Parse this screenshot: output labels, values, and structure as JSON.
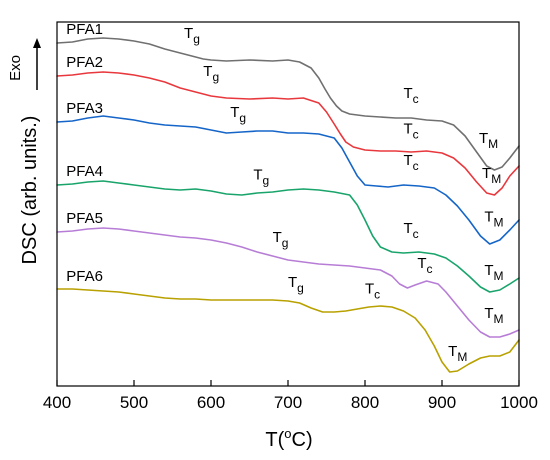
{
  "chart_data": {
    "type": "line",
    "title": "",
    "xlabel": "T(",
    "xlabel_sup": "o",
    "xlabel_tail": "C)",
    "ylabel": "DSC (arb. units.)",
    "exo_label": "Exo",
    "xlim": [
      400,
      1000
    ],
    "x_ticks": [
      400,
      500,
      600,
      700,
      800,
      900,
      1000
    ],
    "y_ticks_visible": false,
    "grid": false,
    "legend": "none",
    "series": [
      {
        "name": "PFA1",
        "color": "#707070",
        "y": [
          [
            400,
            43
          ],
          [
            420,
            42
          ],
          [
            440,
            39
          ],
          [
            460,
            38
          ],
          [
            480,
            39
          ],
          [
            500,
            41
          ],
          [
            520,
            44
          ],
          [
            540,
            49
          ],
          [
            560,
            53
          ],
          [
            575,
            56
          ],
          [
            590,
            59
          ],
          [
            600,
            60
          ],
          [
            620,
            61
          ],
          [
            650,
            60
          ],
          [
            680,
            61
          ],
          [
            700,
            60
          ],
          [
            715,
            62
          ],
          [
            730,
            68
          ],
          [
            740,
            78
          ],
          [
            748,
            89
          ],
          [
            755,
            98
          ],
          [
            763,
            106
          ],
          [
            770,
            111
          ],
          [
            780,
            114
          ],
          [
            800,
            116
          ],
          [
            820,
            117
          ],
          [
            840,
            118
          ],
          [
            860,
            118
          ],
          [
            880,
            120
          ],
          [
            900,
            121
          ],
          [
            915,
            125
          ],
          [
            930,
            136
          ],
          [
            945,
            152
          ],
          [
            958,
            166
          ],
          [
            968,
            170
          ],
          [
            978,
            167
          ],
          [
            988,
            158
          ],
          [
            1000,
            146
          ]
        ],
        "tg": 585,
        "tc": 865,
        "tm": 965
      },
      {
        "name": "PFA2",
        "color": "#e8383d",
        "y": [
          [
            400,
            76
          ],
          [
            420,
            75
          ],
          [
            440,
            73
          ],
          [
            460,
            72
          ],
          [
            480,
            73
          ],
          [
            500,
            75
          ],
          [
            520,
            78
          ],
          [
            540,
            82
          ],
          [
            560,
            88
          ],
          [
            580,
            92
          ],
          [
            600,
            96
          ],
          [
            620,
            98
          ],
          [
            650,
            99
          ],
          [
            680,
            98
          ],
          [
            700,
            99
          ],
          [
            720,
            98
          ],
          [
            740,
            103
          ],
          [
            750,
            112
          ],
          [
            760,
            124
          ],
          [
            768,
            134
          ],
          [
            775,
            142
          ],
          [
            785,
            147
          ],
          [
            800,
            150
          ],
          [
            820,
            151
          ],
          [
            840,
            151
          ],
          [
            860,
            152
          ],
          [
            880,
            151
          ],
          [
            900,
            153
          ],
          [
            915,
            158
          ],
          [
            930,
            168
          ],
          [
            945,
            182
          ],
          [
            958,
            193
          ],
          [
            968,
            195
          ],
          [
            978,
            188
          ],
          [
            988,
            176
          ],
          [
            1000,
            166
          ]
        ],
        "tg": 600,
        "tc": 865,
        "tm": 970
      },
      {
        "name": "PFA3",
        "color": "#1565c8",
        "y": [
          [
            400,
            122
          ],
          [
            420,
            121
          ],
          [
            440,
            118
          ],
          [
            460,
            116
          ],
          [
            480,
            118
          ],
          [
            500,
            120
          ],
          [
            520,
            123
          ],
          [
            540,
            125
          ],
          [
            560,
            126
          ],
          [
            580,
            127
          ],
          [
            600,
            130
          ],
          [
            620,
            133
          ],
          [
            640,
            132
          ],
          [
            660,
            131
          ],
          [
            680,
            131
          ],
          [
            700,
            133
          ],
          [
            720,
            133
          ],
          [
            740,
            134
          ],
          [
            760,
            138
          ],
          [
            770,
            148
          ],
          [
            780,
            162
          ],
          [
            790,
            176
          ],
          [
            800,
            185
          ],
          [
            815,
            186
          ],
          [
            830,
            187
          ],
          [
            850,
            185
          ],
          [
            870,
            186
          ],
          [
            890,
            188
          ],
          [
            905,
            195
          ],
          [
            920,
            206
          ],
          [
            935,
            220
          ],
          [
            950,
            236
          ],
          [
            962,
            244
          ],
          [
            975,
            240
          ],
          [
            988,
            230
          ],
          [
            1000,
            220
          ]
        ],
        "tg": 620,
        "tc": 865,
        "tm": 970
      },
      {
        "name": "PFA4",
        "color": "#19a46b",
        "y": [
          [
            400,
            185
          ],
          [
            420,
            184
          ],
          [
            440,
            182
          ],
          [
            460,
            181
          ],
          [
            480,
            183
          ],
          [
            500,
            185
          ],
          [
            520,
            187
          ],
          [
            540,
            189
          ],
          [
            560,
            190
          ],
          [
            580,
            189
          ],
          [
            600,
            191
          ],
          [
            620,
            194
          ],
          [
            640,
            195
          ],
          [
            660,
            193
          ],
          [
            680,
            192
          ],
          [
            700,
            190
          ],
          [
            720,
            189
          ],
          [
            740,
            190
          ],
          [
            760,
            192
          ],
          [
            780,
            195
          ],
          [
            790,
            205
          ],
          [
            800,
            220
          ],
          [
            810,
            236
          ],
          [
            820,
            247
          ],
          [
            835,
            252
          ],
          [
            850,
            253
          ],
          [
            870,
            252
          ],
          [
            890,
            254
          ],
          [
            905,
            258
          ],
          [
            920,
            266
          ],
          [
            935,
            276
          ],
          [
            950,
            287
          ],
          [
            962,
            292
          ],
          [
            975,
            290
          ],
          [
            988,
            284
          ],
          [
            1000,
            278
          ]
        ],
        "tg": 635,
        "tc": 865,
        "tm": 970
      },
      {
        "name": "PFA5",
        "color": "#b77dd6",
        "y": [
          [
            400,
            232
          ],
          [
            420,
            231
          ],
          [
            440,
            229
          ],
          [
            460,
            228
          ],
          [
            480,
            229
          ],
          [
            500,
            231
          ],
          [
            520,
            233
          ],
          [
            540,
            235
          ],
          [
            560,
            237
          ],
          [
            580,
            238
          ],
          [
            600,
            240
          ],
          [
            620,
            243
          ],
          [
            640,
            247
          ],
          [
            660,
            252
          ],
          [
            680,
            256
          ],
          [
            700,
            260
          ],
          [
            720,
            262
          ],
          [
            740,
            264
          ],
          [
            760,
            265
          ],
          [
            780,
            266
          ],
          [
            800,
            268
          ],
          [
            820,
            270
          ],
          [
            835,
            276
          ],
          [
            845,
            284
          ],
          [
            855,
            288
          ],
          [
            865,
            285
          ],
          [
            880,
            281
          ],
          [
            895,
            284
          ],
          [
            905,
            292
          ],
          [
            920,
            306
          ],
          [
            935,
            320
          ],
          [
            950,
            332
          ],
          [
            962,
            337
          ],
          [
            975,
            337
          ],
          [
            988,
            334
          ],
          [
            1000,
            330
          ]
        ],
        "tg": 665,
        "tc": 875,
        "tm": 970
      },
      {
        "name": "PFA6",
        "color": "#b8a100",
        "y": [
          [
            400,
            289
          ],
          [
            420,
            289
          ],
          [
            440,
            290
          ],
          [
            460,
            291
          ],
          [
            480,
            292
          ],
          [
            500,
            294
          ],
          [
            520,
            296
          ],
          [
            540,
            298
          ],
          [
            560,
            299
          ],
          [
            580,
            299
          ],
          [
            600,
            300
          ],
          [
            620,
            300
          ],
          [
            640,
            300
          ],
          [
            660,
            300
          ],
          [
            680,
            300
          ],
          [
            700,
            301
          ],
          [
            715,
            303
          ],
          [
            730,
            308
          ],
          [
            745,
            312
          ],
          [
            760,
            312
          ],
          [
            775,
            311
          ],
          [
            790,
            309
          ],
          [
            805,
            307
          ],
          [
            820,
            306
          ],
          [
            835,
            307
          ],
          [
            850,
            311
          ],
          [
            865,
            318
          ],
          [
            878,
            330
          ],
          [
            890,
            346
          ],
          [
            900,
            362
          ],
          [
            910,
            372
          ],
          [
            920,
            371
          ],
          [
            935,
            364
          ],
          [
            950,
            358
          ],
          [
            962,
            356
          ],
          [
            975,
            356
          ],
          [
            988,
            352
          ],
          [
            1000,
            340
          ]
        ],
        "tg": 695,
        "tc": 815,
        "tm": 920
      }
    ],
    "annotations": [
      {
        "base": "T",
        "sub": "g",
        "series": "PFA1",
        "x": 565,
        "dy": 16
      },
      {
        "base": "T",
        "sub": "g",
        "series": "PFA2",
        "x": 590,
        "dy": 18
      },
      {
        "base": "T",
        "sub": "g",
        "series": "PFA3",
        "x": 625,
        "dy": 16
      },
      {
        "base": "T",
        "sub": "g",
        "series": "PFA4",
        "x": 655,
        "dy": 14
      },
      {
        "base": "T",
        "sub": "g",
        "series": "PFA5",
        "x": 680,
        "dy": 14
      },
      {
        "base": "T",
        "sub": "g",
        "series": "PFA6",
        "x": 700,
        "dy": 14
      },
      {
        "base": "T",
        "sub": "c",
        "series": "PFA1",
        "x": 850,
        "dy": 20
      },
      {
        "base": "T",
        "sub": "c",
        "series": "PFA2",
        "x": 850,
        "dy": 18
      },
      {
        "base": "T",
        "sub": "c",
        "series": "PFA3",
        "x": 850,
        "dy": 20
      },
      {
        "base": "T",
        "sub": "c",
        "series": "PFA4",
        "x": 850,
        "dy": 20
      },
      {
        "base": "T",
        "sub": "c",
        "series": "PFA5",
        "x": 868,
        "dy": 16
      },
      {
        "base": "T",
        "sub": "c",
        "series": "PFA6",
        "x": 800,
        "dy": 14
      },
      {
        "base": "T",
        "sub": "M",
        "series": "PFA1",
        "x": 948,
        "dy": 12
      },
      {
        "base": "T",
        "sub": "M",
        "series": "PFA2",
        "x": 952,
        "dy": 10
      },
      {
        "base": "T",
        "sub": "M",
        "series": "PFA3",
        "x": 955,
        "dy": 18
      },
      {
        "base": "T",
        "sub": "M",
        "series": "PFA4",
        "x": 955,
        "dy": 14
      },
      {
        "base": "T",
        "sub": "M",
        "series": "PFA5",
        "x": 955,
        "dy": 16
      },
      {
        "base": "T",
        "sub": "M",
        "series": "PFA6",
        "x": 908,
        "dy": 14
      }
    ]
  }
}
